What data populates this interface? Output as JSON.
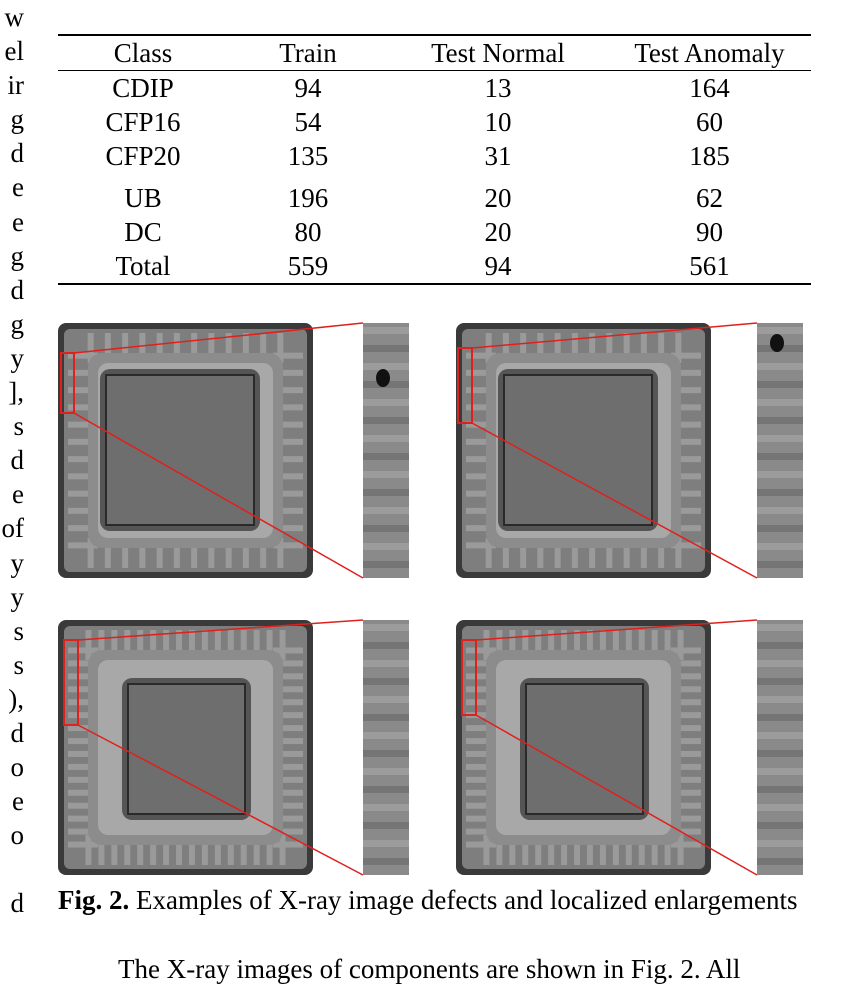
{
  "left_column_fragments": [
    "w",
    "el",
    "ir",
    "g",
    "d",
    "e",
    "e",
    "g",
    "d",
    "g",
    "y",
    "],",
    "s",
    "d",
    "e",
    "of",
    "y",
    "y",
    "s",
    "s",
    "),",
    "d",
    "o",
    "e",
    "o",
    "d"
  ],
  "table": {
    "headers": [
      "Class",
      "Train",
      "Test Normal",
      "Test Anomaly"
    ],
    "rows": [
      [
        "CDIP",
        "94",
        "13",
        "164"
      ],
      [
        "CFP16",
        "54",
        "10",
        "60"
      ],
      [
        "CFP20",
        "135",
        "31",
        "185"
      ],
      [
        "UB",
        "196",
        "20",
        "62"
      ],
      [
        "DC",
        "80",
        "20",
        "90"
      ],
      [
        "Total",
        "559",
        "94",
        "561"
      ]
    ]
  },
  "figure": {
    "label": "Fig. 2.",
    "caption": " Examples of X-ray image defects and localized enlargements",
    "panels": [
      {
        "name": "panel-top-left"
      },
      {
        "name": "panel-top-right"
      },
      {
        "name": "panel-bottom-left"
      },
      {
        "name": "panel-bottom-right"
      }
    ],
    "colors": {
      "highlight": "#e0201c",
      "chip_outer": "#3a3a3a",
      "chip_body": "#8c8c8c",
      "die": "#6e6e6e"
    }
  },
  "body_text": "The X-ray images of components are shown in Fig. 2. All"
}
